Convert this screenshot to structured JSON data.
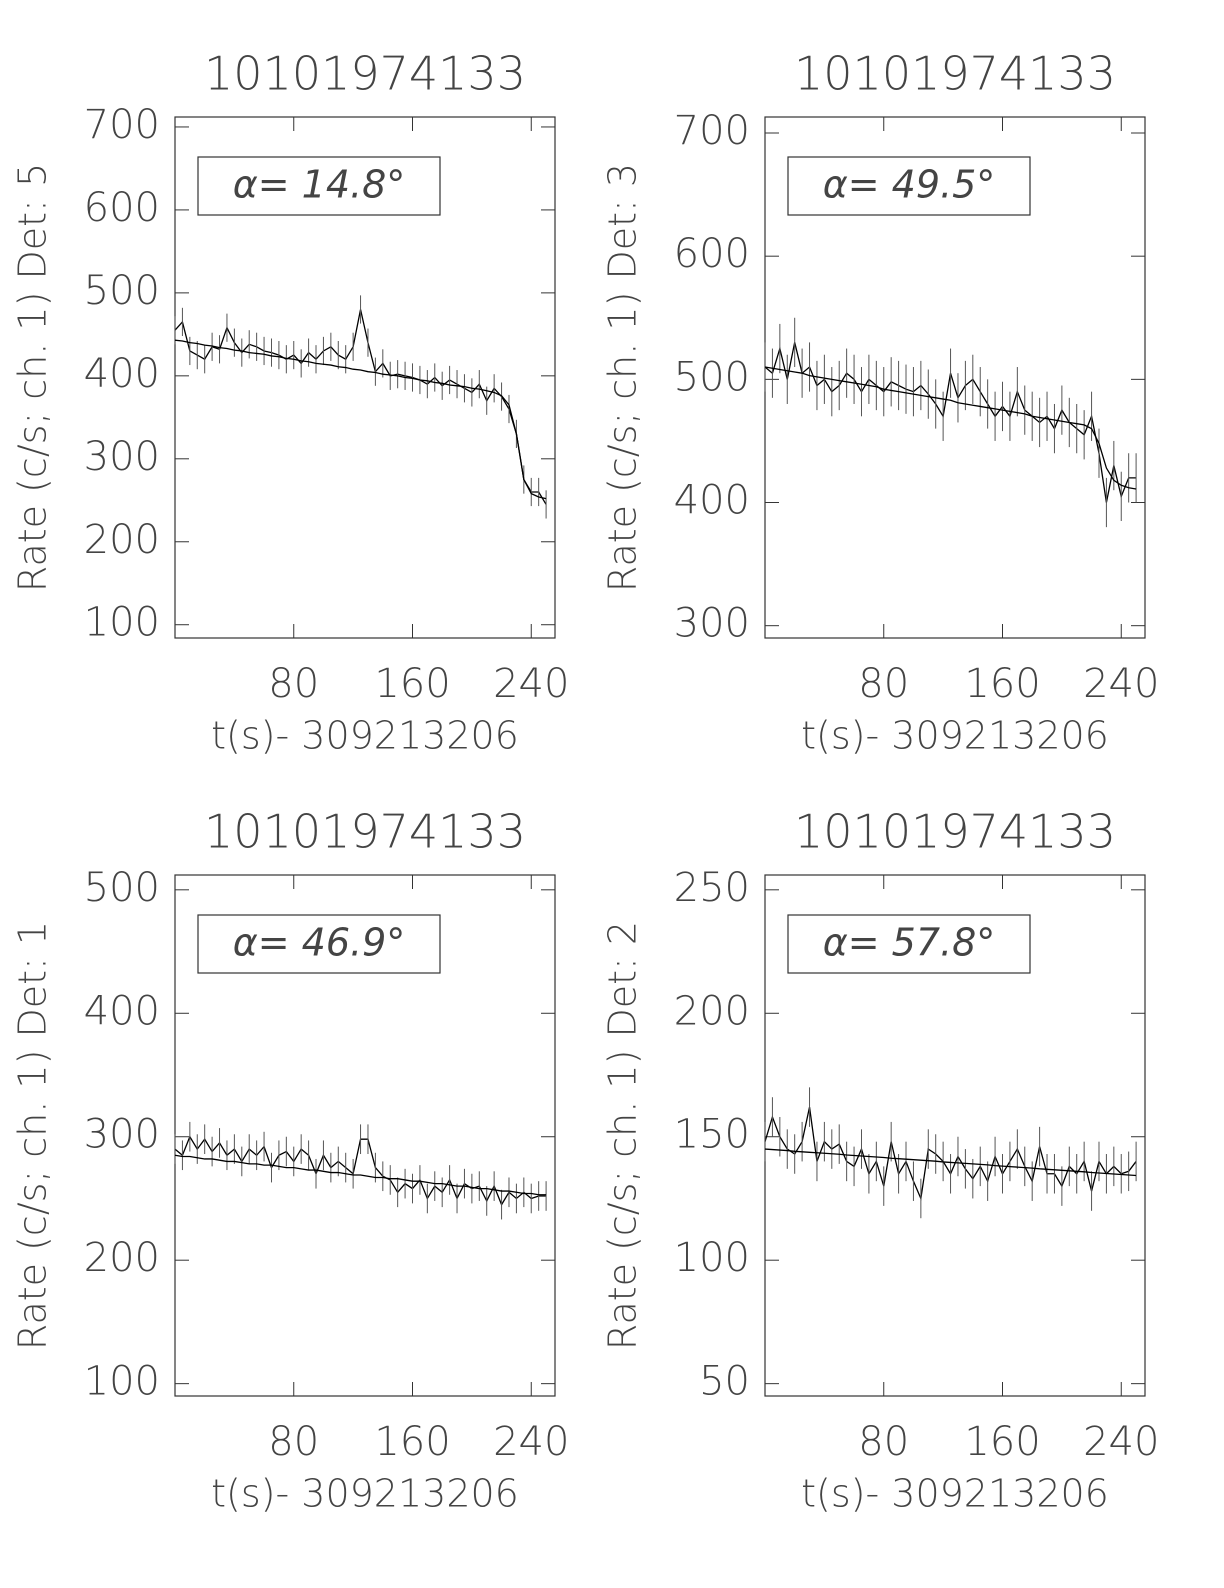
{
  "chart_data": [
    {
      "type": "line",
      "title": "10101974133",
      "x_label": "t(s)- 309213206",
      "y_label": "Rate (c/s; ch. 1) Det: 5",
      "annotation": "α= 14.8°",
      "x": [
        0,
        5,
        10,
        15,
        20,
        25,
        30,
        35,
        40,
        45,
        50,
        55,
        60,
        65,
        70,
        75,
        80,
        85,
        90,
        95,
        100,
        105,
        110,
        115,
        120,
        125,
        130,
        135,
        140,
        145,
        150,
        155,
        160,
        165,
        170,
        175,
        180,
        185,
        190,
        195,
        200,
        205,
        210,
        215,
        220,
        225,
        230,
        235,
        240,
        245,
        250
      ],
      "xlim": [
        0,
        256
      ],
      "xticks": [
        80,
        160,
        240
      ],
      "ylim": [
        84,
        712
      ],
      "yticks": [
        100,
        200,
        300,
        400,
        500,
        600,
        700
      ],
      "series": [
        {
          "color": "#000000",
          "error": 17,
          "values": [
            455,
            465,
            430,
            425,
            420,
            435,
            432,
            458,
            440,
            428,
            438,
            435,
            430,
            428,
            425,
            420,
            425,
            415,
            428,
            420,
            430,
            435,
            425,
            420,
            435,
            480,
            440,
            405,
            415,
            400,
            402,
            400,
            398,
            395,
            390,
            398,
            388,
            395,
            390,
            385,
            380,
            390,
            370,
            385,
            375,
            360,
            330,
            275,
            260,
            260,
            245
          ]
        },
        {
          "color": "#000000",
          "values": [
            443,
            442,
            440,
            439,
            437,
            436,
            434,
            433,
            431,
            430,
            428,
            427,
            426,
            424,
            423,
            421,
            420,
            418,
            417,
            415,
            414,
            413,
            411,
            410,
            408,
            407,
            405,
            404,
            402,
            401,
            400,
            398,
            397,
            395,
            394,
            392,
            391,
            389,
            388,
            387,
            385,
            384,
            382,
            380,
            376,
            365,
            330,
            275,
            258,
            254,
            252
          ]
        }
      ]
    },
    {
      "type": "line",
      "title": "10101974133",
      "x_label": "t(s)- 309213206",
      "y_label": "Rate (c/s; ch. 1) Det: 3",
      "annotation": "α= 49.5°",
      "x": [
        0,
        5,
        10,
        15,
        20,
        25,
        30,
        35,
        40,
        45,
        50,
        55,
        60,
        65,
        70,
        75,
        80,
        85,
        90,
        95,
        100,
        105,
        110,
        115,
        120,
        125,
        130,
        135,
        140,
        145,
        150,
        155,
        160,
        165,
        170,
        175,
        180,
        185,
        190,
        195,
        200,
        205,
        210,
        215,
        220,
        225,
        230,
        235,
        240,
        245,
        250
      ],
      "xlim": [
        0,
        256
      ],
      "xticks": [
        80,
        160,
        240
      ],
      "ylim": [
        290,
        713
      ],
      "yticks": [
        300,
        400,
        500,
        600,
        700
      ],
      "series": [
        {
          "color": "#000000",
          "error": 20,
          "values": [
            510,
            505,
            525,
            500,
            530,
            505,
            510,
            495,
            500,
            490,
            495,
            505,
            500,
            490,
            500,
            495,
            490,
            498,
            495,
            492,
            490,
            495,
            488,
            480,
            470,
            505,
            485,
            495,
            500,
            490,
            480,
            470,
            478,
            470,
            490,
            475,
            470,
            465,
            470,
            460,
            475,
            465,
            460,
            455,
            470,
            440,
            400,
            430,
            405,
            420,
            420
          ]
        },
        {
          "color": "#000000",
          "values": [
            510,
            509,
            508,
            507,
            506,
            505,
            503,
            502,
            501,
            500,
            499,
            498,
            497,
            496,
            495,
            494,
            492,
            491,
            490,
            489,
            488,
            487,
            486,
            485,
            484,
            483,
            481,
            480,
            479,
            478,
            477,
            476,
            475,
            474,
            473,
            472,
            470,
            469,
            468,
            467,
            466,
            465,
            464,
            463,
            460,
            448,
            428,
            418,
            414,
            412,
            411
          ]
        }
      ]
    },
    {
      "type": "line",
      "title": "10101974133",
      "x_label": "t(s)- 309213206",
      "y_label": "Rate (c/s; ch. 1) Det: 1",
      "annotation": "α= 46.9°",
      "x": [
        0,
        5,
        10,
        15,
        20,
        25,
        30,
        35,
        40,
        45,
        50,
        55,
        60,
        65,
        70,
        75,
        80,
        85,
        90,
        95,
        100,
        105,
        110,
        115,
        120,
        125,
        130,
        135,
        140,
        145,
        150,
        155,
        160,
        165,
        170,
        175,
        180,
        185,
        190,
        195,
        200,
        205,
        210,
        215,
        220,
        225,
        230,
        235,
        240,
        245,
        250
      ],
      "xlim": [
        0,
        256
      ],
      "xticks": [
        80,
        160,
        240
      ],
      "ylim": [
        90,
        512
      ],
      "yticks": [
        100,
        200,
        300,
        400,
        500
      ],
      "series": [
        {
          "color": "#000000",
          "error": 12,
          "values": [
            290,
            285,
            300,
            290,
            298,
            288,
            295,
            285,
            290,
            280,
            290,
            285,
            292,
            275,
            285,
            288,
            280,
            290,
            285,
            270,
            285,
            275,
            280,
            275,
            270,
            298,
            298,
            275,
            268,
            265,
            255,
            262,
            258,
            265,
            250,
            260,
            255,
            265,
            250,
            262,
            258,
            260,
            248,
            260,
            245,
            255,
            250,
            255,
            250,
            252,
            252
          ]
        },
        {
          "color": "#000000",
          "values": [
            285,
            284,
            284,
            283,
            282,
            282,
            281,
            280,
            280,
            279,
            278,
            278,
            277,
            277,
            276,
            275,
            275,
            274,
            273,
            273,
            272,
            271,
            271,
            270,
            269,
            269,
            268,
            267,
            267,
            266,
            266,
            265,
            264,
            264,
            263,
            262,
            262,
            261,
            260,
            260,
            259,
            258,
            258,
            257,
            256,
            256,
            255,
            254,
            254,
            253,
            253
          ]
        }
      ]
    },
    {
      "type": "line",
      "title": "10101974133",
      "x_label": "t(s)- 309213206",
      "y_label": "Rate (c/s; ch. 1) Det: 2",
      "annotation": "α= 57.8°",
      "x": [
        0,
        5,
        10,
        15,
        20,
        25,
        30,
        35,
        40,
        45,
        50,
        55,
        60,
        65,
        70,
        75,
        80,
        85,
        90,
        95,
        100,
        105,
        110,
        115,
        120,
        125,
        130,
        135,
        140,
        145,
        150,
        155,
        160,
        165,
        170,
        175,
        180,
        185,
        190,
        195,
        200,
        205,
        210,
        215,
        220,
        225,
        230,
        235,
        240,
        245,
        250
      ],
      "xlim": [
        0,
        256
      ],
      "xticks": [
        80,
        160,
        240
      ],
      "ylim": [
        45,
        256
      ],
      "yticks": [
        50,
        100,
        150,
        200,
        250
      ],
      "series": [
        {
          "color": "#000000",
          "error": 8,
          "values": [
            148,
            158,
            150,
            145,
            143,
            148,
            162,
            140,
            148,
            145,
            147,
            140,
            138,
            145,
            135,
            140,
            130,
            148,
            135,
            140,
            132,
            125,
            145,
            143,
            140,
            135,
            142,
            137,
            133,
            138,
            132,
            142,
            135,
            140,
            145,
            138,
            132,
            146,
            135,
            135,
            130,
            138,
            135,
            140,
            128,
            140,
            135,
            138,
            135,
            136,
            140
          ]
        },
        {
          "color": "#000000",
          "values": [
            145,
            144.8,
            144.6,
            144.4,
            144.1,
            143.9,
            143.7,
            143.5,
            143.3,
            143.1,
            142.9,
            142.6,
            142.4,
            142.2,
            142,
            141.8,
            141.6,
            141.3,
            141.1,
            140.9,
            140.7,
            140.5,
            140.3,
            140.1,
            139.8,
            139.6,
            139.4,
            139.2,
            139,
            138.8,
            138.6,
            138.3,
            138.1,
            137.9,
            137.7,
            137.5,
            137.3,
            137,
            136.8,
            136.6,
            136.4,
            136.2,
            136,
            135.8,
            135.5,
            135.3,
            135.1,
            134.9,
            134.7,
            134.5,
            134.3
          ]
        }
      ]
    }
  ]
}
